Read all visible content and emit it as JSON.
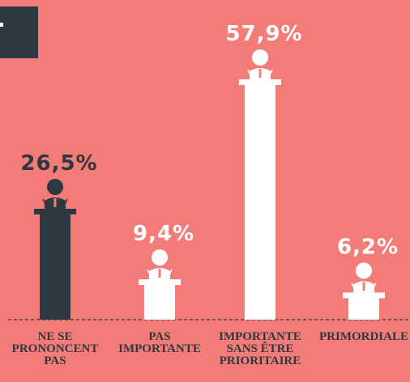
{
  "chart_data": {
    "type": "bar",
    "categories": [
      "NE SE PRONONCENT PAS",
      "PAS IMPORTANTE",
      "IMPORTANTE SANS ÊTRE PRIORITAIRE",
      "PRIMORDIALE"
    ],
    "values": [
      26.5,
      9.4,
      57.9,
      6.2
    ],
    "value_labels": [
      "26,5%",
      "9,4%",
      "57,9%",
      "6,2%"
    ],
    "colors": [
      "#2e3840",
      "#ffffff",
      "#ffffff",
      "#ffffff"
    ]
  }
}
